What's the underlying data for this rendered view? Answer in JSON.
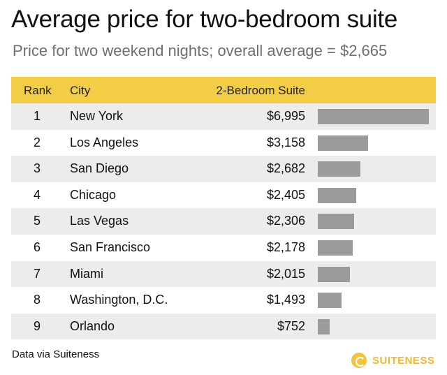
{
  "title": "Average price for two-bedroom suite",
  "subtitle": "Price for two weekend nights; overall average = $2,665",
  "source": "Data via Suiteness",
  "logo_text": "SUITENESS",
  "colors": {
    "header": "#f4cd47",
    "bar": "#9b9b9b",
    "alt_row": "#ececec",
    "logo": "#f0b82e"
  },
  "chart_data": {
    "type": "table",
    "title": "Average price for two-bedroom suite",
    "subtitle": "Price for two weekend nights; overall average = $2,665",
    "columns": [
      "Rank",
      "City",
      "2-Bedroom Suite"
    ],
    "rows": [
      {
        "rank": "1",
        "city": "New York",
        "price": "$6,995",
        "value": 6995
      },
      {
        "rank": "2",
        "city": "Los Angeles",
        "price": "$3,158",
        "value": 3158
      },
      {
        "rank": "3",
        "city": "San Diego",
        "price": "$2,682",
        "value": 2682
      },
      {
        "rank": "4",
        "city": "Chicago",
        "price": "$2,405",
        "value": 2405
      },
      {
        "rank": "5",
        "city": "Las Vegas",
        "price": "$2,306",
        "value": 2306
      },
      {
        "rank": "6",
        "city": "San Francisco",
        "price": "$2,178",
        "value": 2178
      },
      {
        "rank": "7",
        "city": "Miami",
        "price": "$2,015",
        "value": 2015
      },
      {
        "rank": "8",
        "city": "Washington, D.C.",
        "price": "$1,493",
        "value": 1493
      },
      {
        "rank": "9",
        "city": "Orlando",
        "price": "$752",
        "value": 752
      }
    ]
  }
}
